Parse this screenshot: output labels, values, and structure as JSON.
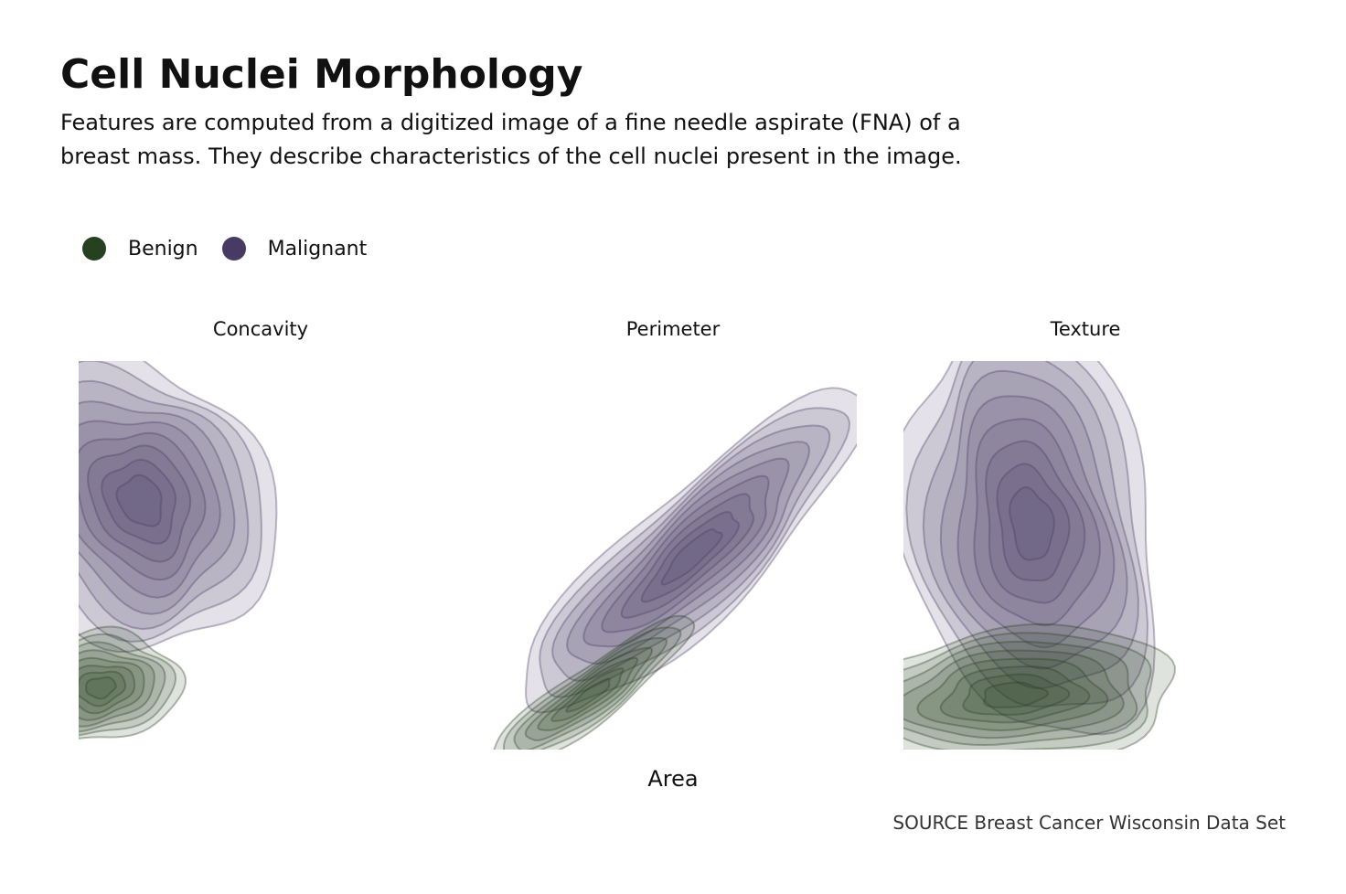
{
  "chart_data": {
    "type": "density-contour",
    "title": "Cell Nuclei Morphology",
    "subtitle": "Features are computed from a digitized image of a fine needle aspirate (FNA) of a breast mass. They describe characteristics of the cell nuclei present in the image.",
    "xlabel": "Area",
    "caption": "SOURCE Breast Cancer Wisconsin Data Set",
    "legend": {
      "placement": "top-left",
      "entries": [
        {
          "name": "Benign",
          "color": "#27401f"
        },
        {
          "name": "Malignant",
          "color": "#483a63"
        }
      ]
    },
    "grid": false,
    "facets": [
      {
        "name": "Concavity",
        "series": {
          "Malignant": {
            "levels": 9,
            "center": [
              0.17,
              0.36
            ],
            "spread": [
              0.34,
              0.4
            ],
            "tilt_deg": -30
          },
          "Benign": {
            "levels": 8,
            "center": [
              0.06,
              0.84
            ],
            "spread": [
              0.22,
              0.14
            ],
            "tilt_deg": -10
          }
        }
      },
      {
        "name": "Perimeter",
        "series": {
          "Malignant": {
            "levels": 9,
            "center": [
              0.55,
              0.5
            ],
            "spread": [
              0.62,
              0.16
            ],
            "tilt_deg": -43
          },
          "Benign": {
            "levels": 7,
            "center": [
              0.27,
              0.86
            ],
            "spread": [
              0.34,
              0.07
            ],
            "tilt_deg": -36
          }
        }
      },
      {
        "name": "Texture",
        "series": {
          "Malignant": {
            "levels": 9,
            "center": [
              0.35,
              0.42
            ],
            "spread": [
              0.34,
              0.56
            ],
            "tilt_deg": -10
          },
          "Benign": {
            "levels": 8,
            "center": [
              0.3,
              0.86
            ],
            "spread": [
              0.46,
              0.17
            ],
            "tilt_deg": -4
          }
        }
      }
    ]
  }
}
